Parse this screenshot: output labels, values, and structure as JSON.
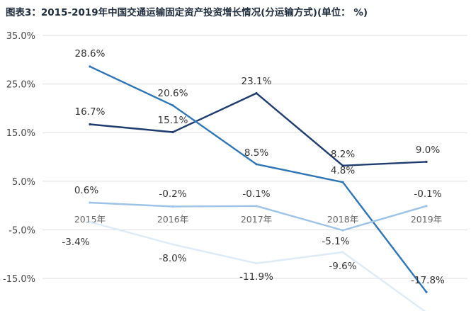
{
  "chart_data": {
    "type": "line",
    "title": "图表3：2015-2019年中国交通运输固定资产投资增长情况(分运输方式)(单位： %)",
    "categories": [
      "2015年",
      "2016年",
      "2017年",
      "2018年",
      "2019年"
    ],
    "y_ticks": [
      "35.0%",
      "25.0%",
      "15.0%",
      "5.0%",
      "-5.0%",
      "-15.0%"
    ],
    "ylim": [
      -15,
      35
    ],
    "grid": true,
    "legend": "none",
    "series": [
      {
        "values": [
          16.7,
          15.1,
          23.1,
          8.2,
          9.0
        ],
        "labels": [
          "16.7%",
          "15.1%",
          "23.1%",
          "8.2%",
          "9.0%"
        ],
        "color": "#1f3c6e"
      },
      {
        "values": [
          28.6,
          20.6,
          8.5,
          4.8,
          -17.8
        ],
        "labels": [
          "28.6%",
          "20.6%",
          "8.5%",
          "4.8%",
          "-17.8%"
        ],
        "color": "#2e75b6"
      },
      {
        "values": [
          0.6,
          -0.2,
          -0.1,
          -5.1,
          -0.1
        ],
        "labels": [
          "0.6%",
          "-0.2%",
          "-0.1%",
          "-5.1%",
          "-0.1%"
        ],
        "color": "#9dc3e6"
      },
      {
        "values": [
          -3.4,
          -8.0,
          -11.9,
          -9.6,
          -22.0
        ],
        "labels": [
          "-3.4%",
          "-8.0%",
          "-11.9%",
          "-9.6%",
          ""
        ],
        "color": "#deebf7"
      }
    ]
  }
}
